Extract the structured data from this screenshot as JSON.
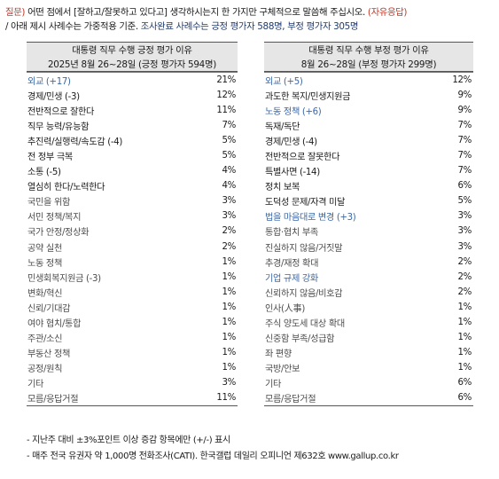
{
  "question": {
    "line1_prefix": "질문)",
    "line1_body": " 어떤 점에서 [잘하고/잘못하고 있다고] 생각하시는지 한 가지만 구체적으로 말씀해 주십시오. ",
    "line1_tag": "(자유응답)",
    "line2_body": "/ 아래 제시 사례수는 가중적용 기준. ",
    "line2_highlight": "조사완료 사례수는 긍정 평가자 588명, 부정 평가자 305명"
  },
  "left": {
    "title": "대통령 직무 수행 긍정 평가 이유",
    "subtitle": "2025년 8월 26~28일 (긍정 평가자 594명)",
    "rows": [
      {
        "label": "외교 (+17)",
        "value": "21%",
        "style": "bl"
      },
      {
        "label": "경제/민생 (-3)",
        "value": "12%",
        "style": "hl"
      },
      {
        "label": "전반적으로 잘한다",
        "value": "11%",
        "style": "hl"
      },
      {
        "label": "직무 능력/유능함",
        "value": "7%",
        "style": "hl"
      },
      {
        "label": "추진력/실행력/속도감 (-4)",
        "value": "5%",
        "style": "hl"
      },
      {
        "label": "전 정부 극복",
        "value": "5%",
        "style": "hl"
      },
      {
        "label": "소통 (-5)",
        "value": "4%",
        "style": "hl"
      },
      {
        "label": "열심히 한다/노력한다",
        "value": "4%",
        "style": "hl"
      },
      {
        "label": "국민을 위함",
        "value": "3%",
        "style": "lo"
      },
      {
        "label": "서민 정책/복지",
        "value": "3%",
        "style": "lo"
      },
      {
        "label": "국가 안정/정상화",
        "value": "2%",
        "style": "lo"
      },
      {
        "label": "공약 실천",
        "value": "2%",
        "style": "lo"
      },
      {
        "label": "노동 정책",
        "value": "1%",
        "style": "lo"
      },
      {
        "label": "민생회복지원금 (-3)",
        "value": "1%",
        "style": "lo"
      },
      {
        "label": "변화/혁신",
        "value": "1%",
        "style": "lo"
      },
      {
        "label": "신뢰/기대감",
        "value": "1%",
        "style": "lo"
      },
      {
        "label": "여야 협치/통합",
        "value": "1%",
        "style": "lo"
      },
      {
        "label": "주관/소신",
        "value": "1%",
        "style": "lo"
      },
      {
        "label": "부동산 정책",
        "value": "1%",
        "style": "lo"
      },
      {
        "label": "공정/원칙",
        "value": "1%",
        "style": "lo"
      },
      {
        "label": "기타",
        "value": "3%",
        "style": "lo"
      },
      {
        "label": "모름/응답거절",
        "value": "11%",
        "style": "lo"
      }
    ]
  },
  "right": {
    "title": "대통령 직무 수행 부정 평가 이유",
    "subtitle": "8월 26~28일 (부정 평가자 299명)",
    "rows": [
      {
        "label": "외교 (+5)",
        "value": "12%",
        "style": "bl"
      },
      {
        "label": "과도한 복지/민생지원금",
        "value": "9%",
        "style": "hl"
      },
      {
        "label": "노동 정책 (+6)",
        "value": "9%",
        "style": "bl"
      },
      {
        "label": "독재/독단",
        "value": "7%",
        "style": "hl"
      },
      {
        "label": "경제/민생 (-4)",
        "value": "7%",
        "style": "hl"
      },
      {
        "label": "전반적으로 잘못한다",
        "value": "7%",
        "style": "hl"
      },
      {
        "label": "특별사면 (-14)",
        "value": "7%",
        "style": "hl"
      },
      {
        "label": "정치 보복",
        "value": "6%",
        "style": "hl"
      },
      {
        "label": "도덕성 문제/자격 미달",
        "value": "5%",
        "style": "hl"
      },
      {
        "label": "법을 마음대로 변경 (+3)",
        "value": "3%",
        "style": "bl"
      },
      {
        "label": "통합·협치 부족",
        "value": "3%",
        "style": "lo"
      },
      {
        "label": "진실하지 않음/거짓말",
        "value": "3%",
        "style": "lo"
      },
      {
        "label": "추경/재정 확대",
        "value": "2%",
        "style": "lo"
      },
      {
        "label": "기업 규제 강화",
        "value": "2%",
        "style": "bl"
      },
      {
        "label": "신뢰하지 않음/비호감",
        "value": "2%",
        "style": "lo"
      },
      {
        "label": "인사(人事)",
        "value": "1%",
        "style": "lo"
      },
      {
        "label": "주식 양도세 대상 확대",
        "value": "1%",
        "style": "lo"
      },
      {
        "label": "신중함 부족/성급함",
        "value": "1%",
        "style": "lo"
      },
      {
        "label": "좌 편향",
        "value": "1%",
        "style": "lo"
      },
      {
        "label": "국방/안보",
        "value": "1%",
        "style": "lo"
      },
      {
        "label": "기타",
        "value": "6%",
        "style": "lo"
      },
      {
        "label": "모름/응답거절",
        "value": "6%",
        "style": "lo"
      }
    ]
  },
  "footnotes": [
    "- 지난주 대비 ±3%포인트 이상 증감 항목에만 (+/-) 표시",
    "- 매주 전국 유권자 약 1,000명 전화조사(CATI). 한국갤럽 데일리 오피니언 제632호 www.gallup.co.kr"
  ]
}
